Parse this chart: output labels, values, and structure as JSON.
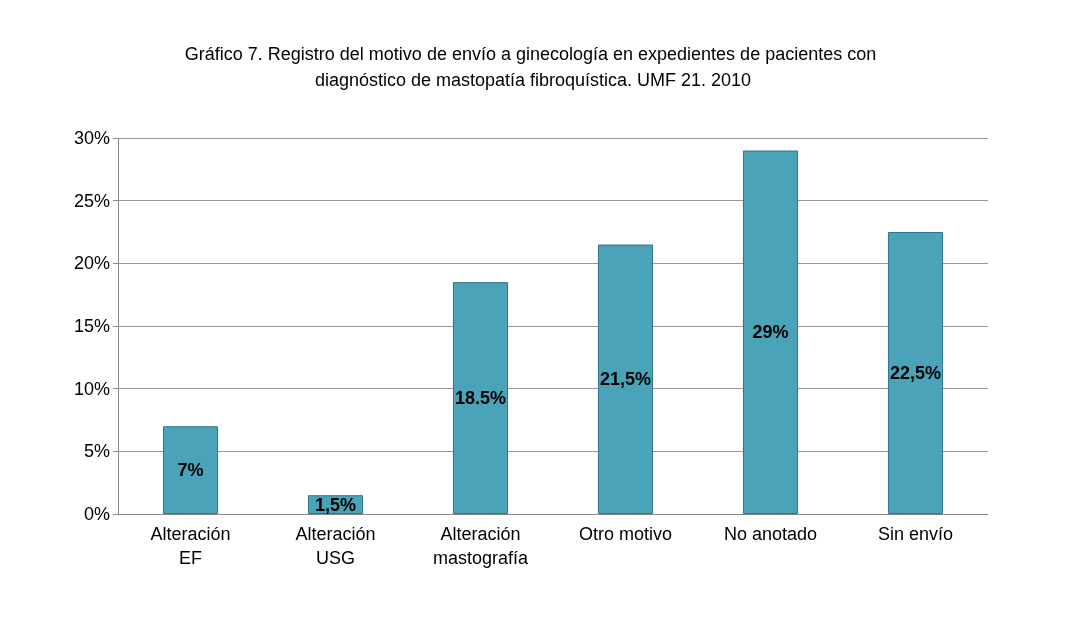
{
  "chart_data": {
    "type": "bar",
    "title": "Gráfico 7. Registro del motivo de envío a ginecología en expedientes de pacientes con diagnóstico de mastopatía fibroquística. UMF 21. 2010",
    "categories": [
      "Alteración\nEF",
      "Alteración\nUSG",
      "Alteración\nmastografía",
      "Otro motivo",
      "No anotado",
      "Sin envío"
    ],
    "values": [
      7,
      1.5,
      18.5,
      21.5,
      29,
      22.5
    ],
    "value_labels": [
      "7%",
      "1,5%",
      "18.5%",
      "21,5%",
      "29%",
      "22,5%"
    ],
    "color": "#4aa3b8",
    "ylim": [
      0,
      30
    ],
    "yticks": [
      {
        "value": 0,
        "label": "0%"
      },
      {
        "value": 5,
        "label": "5%"
      },
      {
        "value": 10,
        "label": "10%"
      },
      {
        "value": 15,
        "label": "15%"
      },
      {
        "value": 20,
        "label": "20%"
      },
      {
        "value": 25,
        "label": "25%"
      },
      {
        "value": 30,
        "label": "30%"
      }
    ],
    "grid": "y"
  }
}
